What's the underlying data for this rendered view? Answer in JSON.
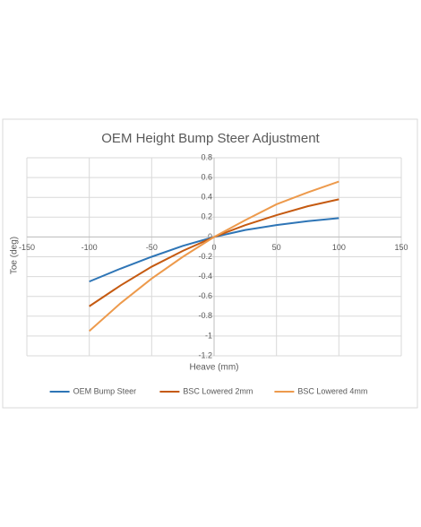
{
  "chart_data": {
    "type": "line",
    "title": "OEM Height Bump Steer Adjustment",
    "x_label": "Heave (mm)",
    "y_label": "Toe (deg)",
    "x": [
      -100,
      -75,
      -50,
      -25,
      0,
      25,
      50,
      75,
      100
    ],
    "series": [
      {
        "name": "OEM Bump Steer",
        "color": "#2e75b6",
        "values": [
          -0.45,
          -0.32,
          -0.2,
          -0.09,
          0,
          0.07,
          0.12,
          0.16,
          0.19
        ]
      },
      {
        "name": "BSC Lowered 2mm",
        "color": "#c55a11",
        "values": [
          -0.7,
          -0.49,
          -0.3,
          -0.14,
          0,
          0.12,
          0.22,
          0.31,
          0.38
        ]
      },
      {
        "name": "BSC Lowered 4mm",
        "color": "#ed9a4c",
        "values": [
          -0.95,
          -0.67,
          -0.42,
          -0.2,
          0,
          0.17,
          0.33,
          0.45,
          0.56
        ]
      }
    ],
    "xlim": [
      -150,
      150
    ],
    "xticks": [
      -150,
      -100,
      -50,
      0,
      50,
      100,
      150
    ],
    "ylim": [
      -1.2,
      0.8
    ],
    "yticks": [
      -1.2,
      -1,
      -0.8,
      -0.6,
      -0.4,
      -0.2,
      0,
      0.2,
      0.4,
      0.6,
      0.8
    ],
    "grid": true,
    "legend": "bottom"
  }
}
